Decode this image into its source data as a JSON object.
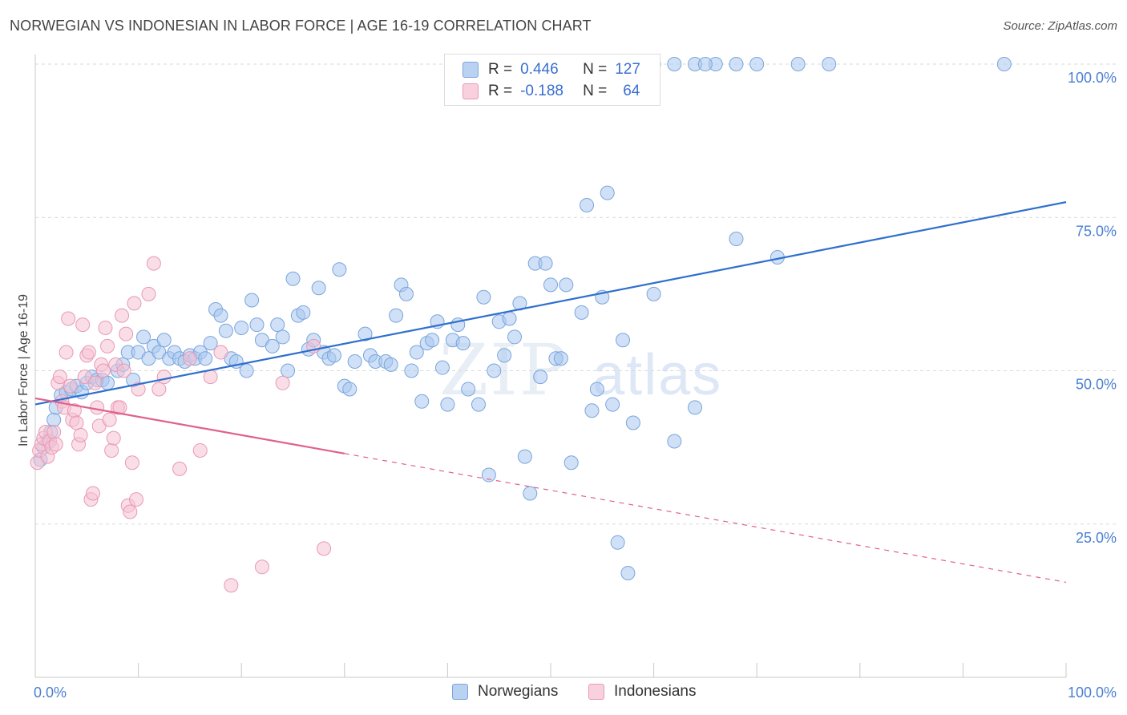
{
  "title": "NORWEGIAN VS INDONESIAN IN LABOR FORCE | AGE 16-19 CORRELATION CHART",
  "source": "Source: ZipAtlas.com",
  "watermark": {
    "zip": "ZIP",
    "atlas": "atlas"
  },
  "legend": {
    "rows": [
      {
        "r_label": "R =",
        "r_value": "0.446",
        "n_label": "N =",
        "n_value": "127",
        "color": "#7baee8"
      },
      {
        "r_label": "R =",
        "r_value": "-0.188",
        "n_label": "N =",
        "n_value": "64",
        "color": "#f4a6bf"
      }
    ]
  },
  "bottom_legend": {
    "norwegians": "Norwegians",
    "indonesians": "Indonesians"
  },
  "colors": {
    "blue_fill": "#a9c8f0",
    "blue_stroke": "#7aa5dc",
    "blue_line": "#2f6fce",
    "pink_fill": "#f6c3d3",
    "pink_stroke": "#e899b4",
    "pink_line": "#e0608f",
    "tick": "#4a7fd1",
    "grid": "#d9d9d9"
  },
  "chart_data": {
    "type": "scatter",
    "ylabel": "In Labor Force | Age 16-19",
    "xlim": [
      0,
      100
    ],
    "ylim": [
      0,
      100
    ],
    "x_tick_labels": [
      "0.0%",
      "100.0%"
    ],
    "y_ticks": [
      {
        "value": 25,
        "label": "25.0%"
      },
      {
        "value": 50,
        "label": "50.0%"
      },
      {
        "value": 75,
        "label": "75.0%"
      },
      {
        "value": 100,
        "label": "100.0%"
      }
    ],
    "series": [
      {
        "name": "Norwegians",
        "trend": {
          "x0": 0,
          "y0": 44.5,
          "x1": 100,
          "y1": 77.5,
          "dashed_from": null
        },
        "points": [
          [
            0.5,
            35.5
          ],
          [
            0.8,
            37.5
          ],
          [
            1.2,
            38.5
          ],
          [
            1.5,
            40
          ],
          [
            1.8,
            42
          ],
          [
            2,
            44
          ],
          [
            2.5,
            46
          ],
          [
            3,
            46.5
          ],
          [
            3.5,
            47
          ],
          [
            4,
            47.5
          ],
          [
            4.5,
            46.5
          ],
          [
            5,
            48
          ],
          [
            5.5,
            49
          ],
          [
            6,
            48.5
          ],
          [
            6.5,
            48.5
          ],
          [
            7,
            48
          ],
          [
            8,
            50
          ],
          [
            8.5,
            51
          ],
          [
            9,
            53
          ],
          [
            9.5,
            48.5
          ],
          [
            10,
            53
          ],
          [
            10.5,
            55.5
          ],
          [
            11,
            52
          ],
          [
            11.5,
            54
          ],
          [
            12,
            53
          ],
          [
            12.5,
            55
          ],
          [
            13,
            52
          ],
          [
            13.5,
            53
          ],
          [
            14,
            52
          ],
          [
            14.5,
            51.5
          ],
          [
            15,
            52.5
          ],
          [
            15.5,
            52
          ],
          [
            16,
            53
          ],
          [
            16.5,
            52
          ],
          [
            17,
            54.5
          ],
          [
            17.5,
            60
          ],
          [
            18,
            59
          ],
          [
            18.5,
            56.5
          ],
          [
            19,
            52
          ],
          [
            19.5,
            51.5
          ],
          [
            20,
            57
          ],
          [
            20.5,
            50
          ],
          [
            21,
            61.5
          ],
          [
            21.5,
            57.5
          ],
          [
            22,
            55
          ],
          [
            23,
            54
          ],
          [
            23.5,
            57.5
          ],
          [
            24,
            55.5
          ],
          [
            24.5,
            50
          ],
          [
            25,
            65
          ],
          [
            25.5,
            59
          ],
          [
            26,
            59.5
          ],
          [
            26.5,
            53.5
          ],
          [
            27,
            55
          ],
          [
            27.5,
            63.5
          ],
          [
            28,
            53
          ],
          [
            28.5,
            52
          ],
          [
            29,
            52.5
          ],
          [
            29.5,
            66.5
          ],
          [
            30,
            47.5
          ],
          [
            30.5,
            47
          ],
          [
            31,
            51.5
          ],
          [
            32,
            56
          ],
          [
            32.5,
            52.5
          ],
          [
            33,
            51.5
          ],
          [
            34,
            51.5
          ],
          [
            34.5,
            51
          ],
          [
            35,
            59
          ],
          [
            35.5,
            64
          ],
          [
            36,
            62.5
          ],
          [
            36.5,
            50
          ],
          [
            37,
            53
          ],
          [
            37.5,
            45
          ],
          [
            38,
            54.5
          ],
          [
            38.5,
            55
          ],
          [
            39,
            58
          ],
          [
            39.5,
            50.5
          ],
          [
            40,
            44.5
          ],
          [
            40.5,
            55
          ],
          [
            41,
            57.5
          ],
          [
            41.5,
            54.5
          ],
          [
            42,
            47
          ],
          [
            43,
            44.5
          ],
          [
            43.5,
            62
          ],
          [
            44,
            33
          ],
          [
            44.5,
            50
          ],
          [
            45,
            58
          ],
          [
            45.5,
            52.5
          ],
          [
            46,
            58.5
          ],
          [
            46.5,
            55.5
          ],
          [
            47,
            61
          ],
          [
            47.5,
            36
          ],
          [
            48,
            30
          ],
          [
            48.5,
            67.5
          ],
          [
            49,
            49
          ],
          [
            49.5,
            67.5
          ],
          [
            50,
            64
          ],
          [
            50.5,
            52
          ],
          [
            51,
            52
          ],
          [
            51.5,
            64
          ],
          [
            52,
            35
          ],
          [
            53,
            59.5
          ],
          [
            53.5,
            77
          ],
          [
            54,
            43.5
          ],
          [
            54.5,
            47
          ],
          [
            55,
            62
          ],
          [
            55.5,
            79
          ],
          [
            56,
            44.5
          ],
          [
            56.5,
            22
          ],
          [
            57,
            55
          ],
          [
            57.5,
            17
          ],
          [
            58,
            41.5
          ],
          [
            60,
            62.5
          ],
          [
            62,
            38.5
          ],
          [
            64,
            44
          ],
          [
            68,
            71.5
          ],
          [
            72,
            68.5
          ],
          [
            62,
            100
          ],
          [
            64,
            100
          ],
          [
            66,
            100
          ],
          [
            68,
            100
          ],
          [
            70,
            100
          ],
          [
            74,
            100
          ],
          [
            77,
            100
          ],
          [
            94,
            100
          ],
          [
            60,
            100
          ],
          [
            65,
            100
          ]
        ]
      },
      {
        "name": "Indonesians",
        "trend": {
          "x0": 0,
          "y0": 45.5,
          "x1": 100,
          "y1": 15.5,
          "dashed_from": 30
        },
        "points": [
          [
            0.2,
            35
          ],
          [
            0.4,
            37
          ],
          [
            0.6,
            38
          ],
          [
            0.8,
            39
          ],
          [
            1,
            40
          ],
          [
            1.2,
            36
          ],
          [
            1.4,
            38.5
          ],
          [
            1.6,
            37.5
          ],
          [
            1.8,
            40
          ],
          [
            2,
            38
          ],
          [
            2.2,
            48
          ],
          [
            2.4,
            49
          ],
          [
            2.6,
            45
          ],
          [
            2.8,
            44
          ],
          [
            3,
            53
          ],
          [
            3.2,
            58.5
          ],
          [
            3.4,
            47.5
          ],
          [
            3.6,
            42
          ],
          [
            3.8,
            43.5
          ],
          [
            4,
            41.5
          ],
          [
            4.2,
            38
          ],
          [
            4.4,
            39.5
          ],
          [
            4.6,
            57.5
          ],
          [
            4.8,
            49
          ],
          [
            5,
            52.5
          ],
          [
            5.2,
            53
          ],
          [
            5.4,
            29
          ],
          [
            5.6,
            30
          ],
          [
            5.8,
            48
          ],
          [
            6,
            44
          ],
          [
            6.2,
            41
          ],
          [
            6.4,
            51
          ],
          [
            6.6,
            50
          ],
          [
            6.8,
            57
          ],
          [
            7,
            54
          ],
          [
            7.2,
            42
          ],
          [
            7.4,
            37
          ],
          [
            7.6,
            39
          ],
          [
            7.8,
            51
          ],
          [
            8,
            44
          ],
          [
            8.2,
            44
          ],
          [
            8.4,
            59
          ],
          [
            8.6,
            50
          ],
          [
            8.8,
            56
          ],
          [
            9,
            28
          ],
          [
            9.2,
            27
          ],
          [
            9.4,
            35
          ],
          [
            9.6,
            61
          ],
          [
            9.8,
            29
          ],
          [
            10,
            47
          ],
          [
            11,
            62.5
          ],
          [
            11.5,
            67.5
          ],
          [
            12,
            47
          ],
          [
            12.5,
            49
          ],
          [
            14,
            34
          ],
          [
            15,
            52
          ],
          [
            16,
            37
          ],
          [
            17,
            49
          ],
          [
            18,
            53
          ],
          [
            19,
            15
          ],
          [
            22,
            18
          ],
          [
            24,
            48
          ],
          [
            27,
            54
          ],
          [
            28,
            21
          ]
        ]
      }
    ]
  }
}
